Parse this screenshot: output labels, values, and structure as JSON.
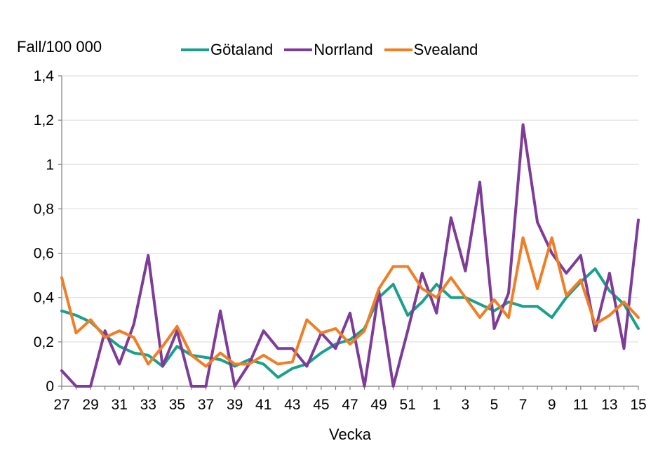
{
  "title": "Fall/100 000",
  "x_axis_label": "Vecka",
  "legend": {
    "items": [
      {
        "label": "Götaland",
        "color": "#1AA08C"
      },
      {
        "label": "Norrland",
        "color": "#7D3C98"
      },
      {
        "label": "Svealand",
        "color": "#F07E26"
      }
    ]
  },
  "style": {
    "axis_color": "#808080",
    "grid_color": "#D9D9D9",
    "text_color": "#000000",
    "background": "#FFFFFF"
  },
  "chart_data": {
    "type": "line",
    "title": "Fall/100 000",
    "xlabel": "Vecka",
    "ylabel": "Fall/100 000",
    "ylim": [
      0,
      1.4
    ],
    "y_tick_labels": [
      "0",
      "0,2",
      "0,4",
      "0,6",
      "0,8",
      "1",
      "1,2",
      "1,4"
    ],
    "grid": "horizontal",
    "legend_position": "top",
    "x_labeled_every": 2,
    "categories": [
      "27",
      "28",
      "29",
      "30",
      "31",
      "32",
      "33",
      "34",
      "35",
      "36",
      "37",
      "38",
      "39",
      "40",
      "41",
      "42",
      "43",
      "44",
      "45",
      "46",
      "47",
      "48",
      "49",
      "50",
      "51",
      "52",
      "1",
      "2",
      "3",
      "4",
      "5",
      "6",
      "7",
      "8",
      "9",
      "10",
      "11",
      "12",
      "13",
      "14",
      "15"
    ],
    "series": [
      {
        "name": "Götaland",
        "color": "#1AA08C",
        "values": [
          0.34,
          0.32,
          0.29,
          0.23,
          0.18,
          0.15,
          0.14,
          0.09,
          0.18,
          0.14,
          0.13,
          0.12,
          0.09,
          0.12,
          0.1,
          0.04,
          0.08,
          0.1,
          0.15,
          0.19,
          0.21,
          0.26,
          0.4,
          0.46,
          0.32,
          0.38,
          0.46,
          0.4,
          0.4,
          0.37,
          0.34,
          0.38,
          0.36,
          0.36,
          0.31,
          0.4,
          0.47,
          0.53,
          0.43,
          0.37,
          0.26
        ]
      },
      {
        "name": "Norrland",
        "color": "#7D3C98",
        "values": [
          0.07,
          0.0,
          0.0,
          0.25,
          0.1,
          0.28,
          0.59,
          0.09,
          0.25,
          0.0,
          0.0,
          0.34,
          0.0,
          0.1,
          0.25,
          0.17,
          0.17,
          0.09,
          0.24,
          0.17,
          0.33,
          0.0,
          0.43,
          0.0,
          0.25,
          0.51,
          0.33,
          0.76,
          0.52,
          0.92,
          0.26,
          0.42,
          1.18,
          0.74,
          0.6,
          0.51,
          0.59,
          0.25,
          0.51,
          0.17,
          0.75
        ]
      },
      {
        "name": "Svealand",
        "color": "#F07E26",
        "values": [
          0.49,
          0.24,
          0.3,
          0.22,
          0.25,
          0.22,
          0.1,
          0.18,
          0.27,
          0.14,
          0.09,
          0.15,
          0.1,
          0.1,
          0.14,
          0.1,
          0.11,
          0.3,
          0.24,
          0.26,
          0.19,
          0.25,
          0.44,
          0.54,
          0.54,
          0.44,
          0.4,
          0.49,
          0.4,
          0.31,
          0.39,
          0.31,
          0.67,
          0.44,
          0.67,
          0.41,
          0.48,
          0.28,
          0.32,
          0.38,
          0.31
        ]
      }
    ]
  }
}
